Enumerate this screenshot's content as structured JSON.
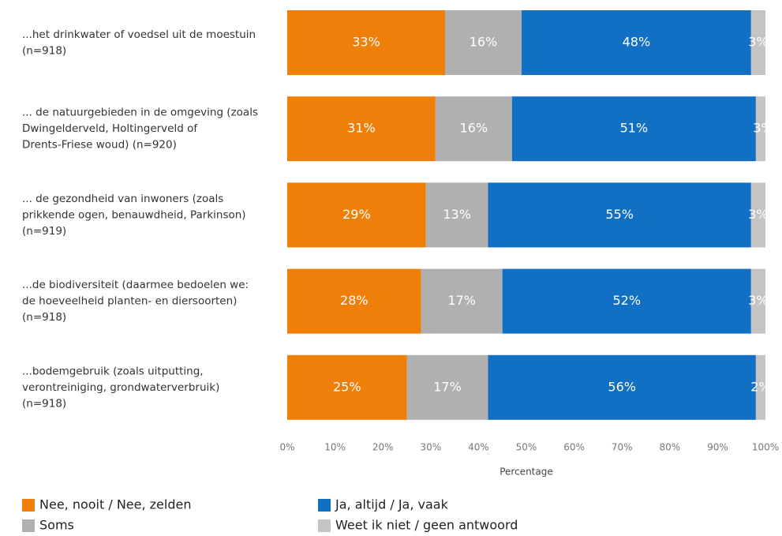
{
  "chart_data": {
    "type": "stacked-barh",
    "categories": [
      [
        "...het drinkwater of voedsel uit de moestuin",
        "(n=918)"
      ],
      [
        "... de natuurgebieden in de omgeving (zoals",
        "Dwingelderveld, Holtingerveld of",
        "Drents-Friese woud) (n=920)"
      ],
      [
        "... de gezondheid van inwoners (zoals",
        "prikkende ogen, benauwdheid, Parkinson)",
        "(n=919)"
      ],
      [
        "...de biodiversiteit (daarmee bedoelen we:",
        "de hoeveelheid planten- en diersoorten)",
        "(n=918)"
      ],
      [
        "...bodemgebruik (zoals uitputting,",
        "verontreiniging, grondwaterverbruik)",
        "(n=918)"
      ]
    ],
    "series": [
      {
        "name": "Nee, nooit / Nee, zelden",
        "color": "#f07f09",
        "values": [
          33,
          31,
          29,
          28,
          25
        ],
        "value_labels": [
          "33%",
          "31%",
          "29%",
          "28%",
          "25%"
        ]
      },
      {
        "name": "Soms",
        "color": "#b0b0b0",
        "values": [
          16,
          16,
          13,
          17,
          17
        ],
        "value_labels": [
          "16%",
          "16%",
          "13%",
          "17%",
          "17%"
        ]
      },
      {
        "name": "Ja, altijd / Ja, vaak",
        "color": "#1170c4",
        "values": [
          48,
          51,
          55,
          52,
          56
        ],
        "value_labels": [
          "48%",
          "51%",
          "55%",
          "52%",
          "56%"
        ]
      },
      {
        "name": "Weet ik niet / geen antwoord",
        "color": "#c4c4c4",
        "values": [
          3,
          3,
          3,
          3,
          2
        ],
        "value_labels": [
          "3%",
          "3%",
          "3%",
          "3%",
          "2%"
        ]
      }
    ],
    "xlim": [
      0,
      100
    ],
    "xticks": [
      {
        "value": 0,
        "label": "0%"
      },
      {
        "value": 10,
        "label": "10%"
      },
      {
        "value": 20,
        "label": "20%"
      },
      {
        "value": 30,
        "label": "30%"
      },
      {
        "value": 40,
        "label": "40%"
      },
      {
        "value": 50,
        "label": "50%"
      },
      {
        "value": 60,
        "label": "60%"
      },
      {
        "value": 70,
        "label": "70%"
      },
      {
        "value": 80,
        "label": "80%"
      },
      {
        "value": 90,
        "label": "90%"
      },
      {
        "value": 100,
        "label": "100%"
      }
    ],
    "xlabel": "Percentage"
  }
}
